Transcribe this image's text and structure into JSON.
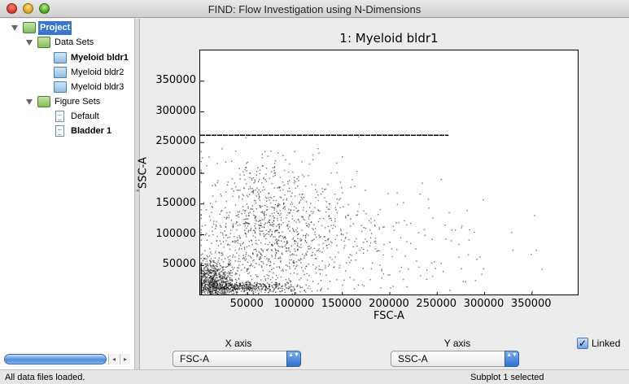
{
  "window": {
    "title": "FIND: Flow Investigation using N-Dimensions"
  },
  "sidebar": {
    "project": "Project",
    "data_sets_label": "Data Sets",
    "data_sets": [
      "Myeloid bldr1",
      "Myeloid bldr2",
      "Myeloid bldr3"
    ],
    "figure_sets_label": "Figure Sets",
    "figure_sets": [
      "Default",
      "Bladder 1"
    ],
    "scroll_left": "◂",
    "scroll_right": "▸"
  },
  "controls": {
    "x_axis_label": "X axis",
    "x_axis_value": "FSC-A",
    "y_axis_label": "Y axis",
    "y_axis_value": "SSC-A",
    "linked_label": "Linked",
    "linked_checked": "✓",
    "stepper_glyph": "▲▼"
  },
  "status": {
    "left": "All data files loaded.",
    "right": "Subplot 1 selected"
  },
  "chart_data": {
    "type": "scatter",
    "title": "1: Myeloid bldr1",
    "xlabel": "FSC-A",
    "ylabel": "SSC-A",
    "xlim": [
      0,
      400000
    ],
    "ylim": [
      0,
      400000
    ],
    "xticks": [
      50000,
      100000,
      150000,
      200000,
      250000,
      300000,
      350000
    ],
    "yticks": [
      50000,
      100000,
      150000,
      200000,
      250000,
      300000,
      350000
    ],
    "grid": false,
    "legend": "none",
    "point_color": "#000000",
    "clusters": [
      {
        "name": "",
        "center": [
          12000,
          20000
        ],
        "spread": [
          12000,
          22000
        ],
        "count": 900
      },
      {
        "name": "",
        "center": [
          45000,
          15000
        ],
        "spread": [
          30000,
          5000
        ],
        "count": 500
      },
      {
        "name": "",
        "center": [
          62000,
          110000
        ],
        "spread": [
          28000,
          60000
        ],
        "count": 600
      },
      {
        "name": "",
        "center": [
          95000,
          110000
        ],
        "spread": [
          45000,
          55000
        ],
        "count": 500
      },
      {
        "name": "",
        "center": [
          180000,
          80000
        ],
        "spread": [
          70000,
          60000
        ],
        "count": 200
      }
    ],
    "saturation_line": {
      "y": 262000,
      "x_range": [
        0,
        262000
      ]
    }
  }
}
